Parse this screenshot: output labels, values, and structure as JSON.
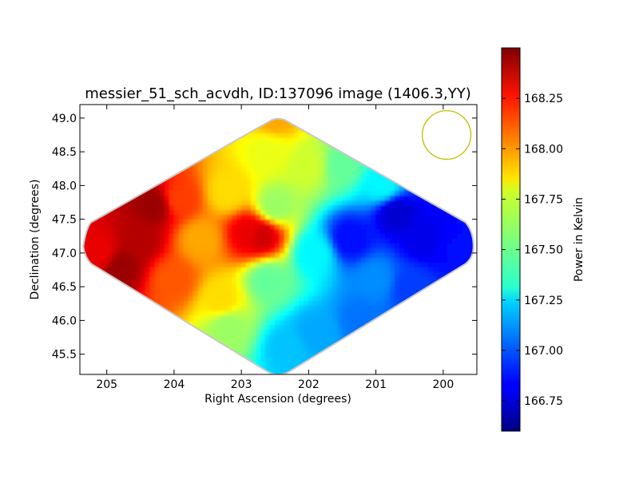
{
  "chart_data": {
    "type": "heatmap",
    "title": "messier_51_sch_acvdh, ID:137096 image (1406.3,YY)",
    "xlabel": "Right Ascension (degrees)",
    "ylabel": "Declination (degrees)",
    "xlim": [
      205.4,
      199.5
    ],
    "ylim": [
      45.2,
      49.2
    ],
    "x_ticks": [
      205,
      204,
      203,
      202,
      201,
      200
    ],
    "x_tick_labels": [
      "205",
      "204",
      "203",
      "202",
      "201",
      "200"
    ],
    "y_ticks": [
      45.5,
      46.0,
      46.5,
      47.0,
      47.5,
      48.0,
      48.5,
      49.0
    ],
    "y_tick_labels": [
      "45.5",
      "46.0",
      "46.5",
      "47.0",
      "47.5",
      "48.0",
      "48.5",
      "49.0"
    ],
    "grid": false,
    "colormap": "jet",
    "colorbar": {
      "label": "Power in Kelvin",
      "range": [
        166.6,
        168.5
      ],
      "ticks": [
        166.75,
        167.0,
        167.25,
        167.5,
        167.75,
        168.0,
        168.25
      ],
      "tick_labels": [
        "166.75",
        "167.00",
        "167.25",
        "167.50",
        "167.75",
        "168.00",
        "168.25"
      ]
    },
    "footprint": {
      "shape": "diamond",
      "center": [
        202.45,
        47.1
      ],
      "ra_half_extent": 2.9,
      "dec_half_extent": 1.95
    },
    "value_field": {
      "description_points": [
        {
          "ra": 204.5,
          "dec": 47.2,
          "value": 168.4
        },
        {
          "ra": 205.1,
          "dec": 47.0,
          "value": 168.3
        },
        {
          "ra": 204.8,
          "dec": 46.8,
          "value": 168.45
        },
        {
          "ra": 204.3,
          "dec": 47.7,
          "value": 168.45
        },
        {
          "ra": 204.0,
          "dec": 46.6,
          "value": 168.1
        },
        {
          "ra": 203.9,
          "dec": 47.8,
          "value": 168.15
        },
        {
          "ra": 203.6,
          "dec": 47.2,
          "value": 167.95
        },
        {
          "ra": 203.3,
          "dec": 46.3,
          "value": 167.85
        },
        {
          "ra": 203.2,
          "dec": 47.9,
          "value": 167.85
        },
        {
          "ra": 202.9,
          "dec": 47.3,
          "value": 168.3
        },
        {
          "ra": 202.7,
          "dec": 47.25,
          "value": 168.35
        },
        {
          "ra": 202.5,
          "dec": 49.0,
          "value": 167.95
        },
        {
          "ra": 202.6,
          "dec": 48.5,
          "value": 167.75
        },
        {
          "ra": 202.5,
          "dec": 47.7,
          "value": 167.6
        },
        {
          "ra": 202.6,
          "dec": 46.6,
          "value": 167.5
        },
        {
          "ra": 202.3,
          "dec": 45.6,
          "value": 167.2
        },
        {
          "ra": 203.2,
          "dec": 45.9,
          "value": 167.6
        },
        {
          "ra": 202.0,
          "dec": 48.3,
          "value": 167.7
        },
        {
          "ra": 201.5,
          "dec": 48.3,
          "value": 167.5
        },
        {
          "ra": 201.9,
          "dec": 47.0,
          "value": 167.3
        },
        {
          "ra": 201.4,
          "dec": 47.2,
          "value": 166.85
        },
        {
          "ra": 200.7,
          "dec": 47.6,
          "value": 166.75
        },
        {
          "ra": 200.3,
          "dec": 47.2,
          "value": 166.8
        },
        {
          "ra": 199.8,
          "dec": 47.05,
          "value": 166.85
        },
        {
          "ra": 201.0,
          "dec": 46.6,
          "value": 167.1
        },
        {
          "ra": 201.2,
          "dec": 46.0,
          "value": 167.05
        },
        {
          "ra": 200.5,
          "dec": 46.5,
          "value": 166.95
        },
        {
          "ra": 201.9,
          "dec": 45.8,
          "value": 167.15
        },
        {
          "ra": 200.9,
          "dec": 48.0,
          "value": 167.3
        }
      ]
    },
    "beam_marker": {
      "ra": 199.95,
      "dec": 48.75,
      "radius_deg": 0.36,
      "color": "#bfbf00"
    }
  }
}
